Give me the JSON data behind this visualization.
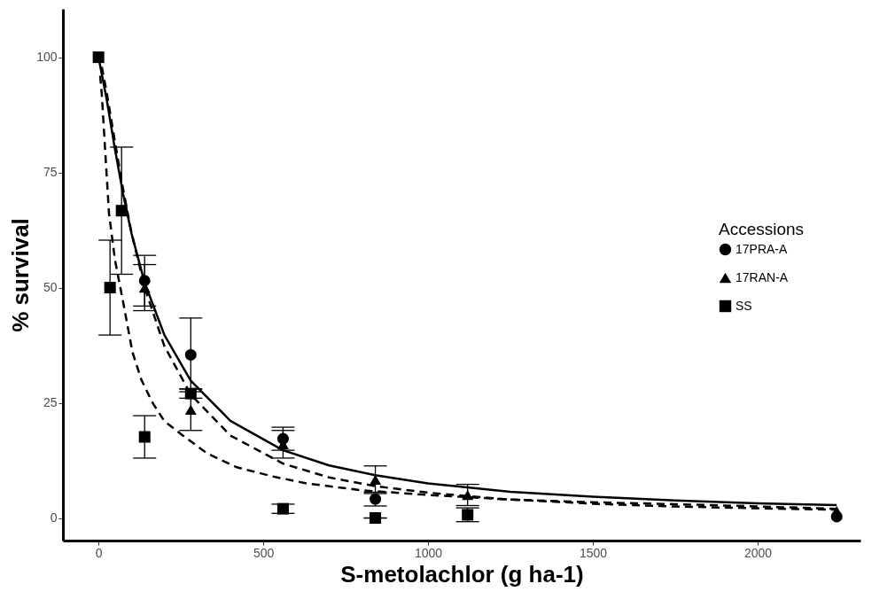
{
  "chart_data": {
    "type": "scatter",
    "xlabel": "S-metolachlor (g ha-1)",
    "ylabel": "% survival",
    "legend_title": "Accessions",
    "legend": "right",
    "grid": false,
    "xlim": [
      -108,
      2312
    ],
    "ylim": [
      -4.9,
      110.5
    ],
    "xticks": [
      0,
      500,
      1000,
      1500,
      2000
    ],
    "yticks": [
      0,
      25,
      50,
      75,
      100
    ],
    "series": [
      {
        "type": "line",
        "line_style": "solid",
        "color": "#000000",
        "x": [
          0,
          25,
          50,
          75,
          100,
          140,
          200,
          280,
          400,
          560,
          700,
          840,
          1000,
          1250,
          1500,
          1750,
          2000,
          2240
        ],
        "values": [
          100,
          90.8,
          80,
          70.2,
          61.8,
          51.1,
          39.7,
          29.8,
          21.1,
          14.7,
          11.4,
          9.3,
          7.5,
          5.7,
          4.6,
          3.8,
          3.2,
          2.8
        ]
      },
      {
        "type": "line",
        "line_style": "dashed",
        "color": "#000000",
        "x": [
          10,
          25,
          50,
          75,
          100,
          140,
          200,
          280,
          400,
          560,
          700,
          840,
          1000,
          1250,
          1500,
          1750,
          2000,
          2240
        ],
        "values": [
          97.9,
          92.3,
          81.6,
          71.2,
          62,
          50,
          37.3,
          26.8,
          17.9,
          11.8,
          8.8,
          6.9,
          5.5,
          4,
          3.1,
          2.5,
          2.1,
          1.8
        ]
      },
      {
        "type": "line",
        "line_style": "dashed",
        "color": "#000000",
        "x": [
          5,
          10,
          20,
          32,
          50,
          77,
          103,
          130,
          164,
          200,
          254,
          330,
          420,
          530,
          632,
          800,
          1000,
          1250,
          1500,
          1750,
          2000,
          2240
        ],
        "values": [
          96,
          92,
          80,
          66,
          56,
          46,
          36,
          30,
          25,
          21,
          18,
          14,
          11,
          9,
          7.5,
          6,
          5,
          4,
          3.4,
          3,
          2.5,
          2
        ]
      },
      {
        "name": "17PRA-A",
        "type": "scatter",
        "marker": "circle",
        "color": "#000000",
        "x": [
          140,
          280,
          560,
          840,
          2240
        ],
        "values": [
          51.5,
          35.4,
          17.2,
          4.1,
          0.3
        ],
        "errors": [
          5.5,
          8,
          2.5,
          1.5,
          null
        ]
      },
      {
        "name": "17RAN-A",
        "type": "scatter",
        "marker": "triangle",
        "color": "#000000",
        "x": [
          140,
          280,
          560,
          840,
          1120,
          2240
        ],
        "values": [
          50,
          23.5,
          16,
          8.3,
          5,
          1.5
        ],
        "errors": [
          5,
          4.5,
          3,
          3,
          2.3,
          null
        ]
      },
      {
        "name": "SS",
        "type": "scatter",
        "marker": "square",
        "color": "#000000",
        "x": [
          0,
          35,
          70,
          140,
          280,
          560,
          840,
          1120
        ],
        "values": [
          100,
          50,
          66.7,
          17.6,
          27,
          2,
          0,
          0.7
        ],
        "errors": [
          null,
          10.3,
          13.8,
          4.6,
          1,
          1,
          0,
          1.5
        ]
      }
    ]
  }
}
